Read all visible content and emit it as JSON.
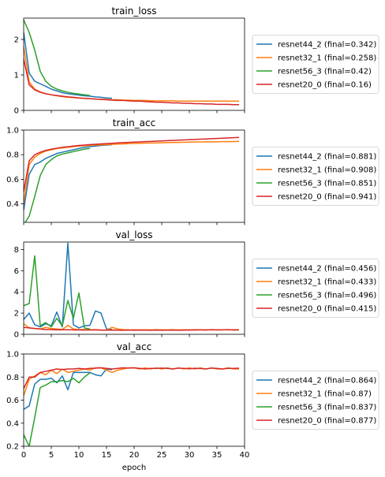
{
  "figure": {
    "xlabel": "epoch"
  },
  "chart_data": [
    {
      "type": "line",
      "title": "train_loss",
      "xlabel": "",
      "ylabel": "",
      "xlim": [
        0,
        40
      ],
      "ylim": [
        0,
        2.6
      ],
      "yticks": [
        0,
        1,
        2
      ],
      "xticks": [
        0,
        5,
        10,
        15,
        20,
        25,
        30,
        35,
        40
      ],
      "show_xtick_labels": false,
      "legend_position": "right",
      "series": [
        {
          "name": "resnet44_2 (final=0.342)",
          "color": "#1f77b4",
          "x": [
            0,
            1,
            2,
            3,
            4,
            5,
            6,
            7,
            8,
            9,
            10,
            11,
            12,
            13,
            14,
            15,
            16
          ],
          "y": [
            2.2,
            1.05,
            0.82,
            0.75,
            0.68,
            0.6,
            0.55,
            0.5,
            0.47,
            0.45,
            0.43,
            0.41,
            0.4,
            0.38,
            0.37,
            0.35,
            0.342
          ]
        },
        {
          "name": "resnet32_1 (final=0.258)",
          "color": "#ff7f0e",
          "x": [
            0,
            1,
            2,
            3,
            4,
            5,
            6,
            7,
            8,
            9,
            10,
            11,
            12,
            13,
            14,
            15,
            16,
            17,
            18,
            19,
            20,
            21,
            22,
            23,
            24,
            25,
            26,
            27,
            28,
            29,
            30,
            31,
            32,
            33,
            34,
            35,
            36,
            37,
            38,
            39
          ],
          "y": [
            1.8,
            0.8,
            0.6,
            0.52,
            0.47,
            0.44,
            0.41,
            0.39,
            0.37,
            0.36,
            0.35,
            0.34,
            0.33,
            0.32,
            0.31,
            0.31,
            0.3,
            0.3,
            0.29,
            0.29,
            0.28,
            0.28,
            0.28,
            0.27,
            0.27,
            0.27,
            0.27,
            0.27,
            0.26,
            0.26,
            0.26,
            0.26,
            0.26,
            0.26,
            0.26,
            0.26,
            0.26,
            0.26,
            0.26,
            0.258
          ]
        },
        {
          "name": "resnet56_3 (final=0.42)",
          "color": "#2ca02c",
          "x": [
            0,
            1,
            2,
            3,
            4,
            5,
            6,
            7,
            8,
            9,
            10,
            11,
            12
          ],
          "y": [
            2.55,
            2.2,
            1.7,
            1.1,
            0.82,
            0.68,
            0.6,
            0.55,
            0.51,
            0.48,
            0.46,
            0.44,
            0.42
          ]
        },
        {
          "name": "resnet20_0 (final=0.16)",
          "color": "#d62728",
          "x": [
            0,
            1,
            2,
            3,
            4,
            5,
            6,
            7,
            8,
            9,
            10,
            11,
            12,
            13,
            14,
            15,
            16,
            17,
            18,
            19,
            20,
            21,
            22,
            23,
            24,
            25,
            26,
            27,
            28,
            29,
            30,
            31,
            32,
            33,
            34,
            35,
            36,
            37,
            38,
            39
          ],
          "y": [
            1.45,
            0.72,
            0.58,
            0.51,
            0.47,
            0.44,
            0.42,
            0.4,
            0.38,
            0.37,
            0.35,
            0.34,
            0.33,
            0.32,
            0.31,
            0.3,
            0.29,
            0.28,
            0.28,
            0.27,
            0.26,
            0.26,
            0.25,
            0.24,
            0.23,
            0.23,
            0.22,
            0.21,
            0.21,
            0.2,
            0.2,
            0.19,
            0.19,
            0.18,
            0.18,
            0.17,
            0.17,
            0.17,
            0.16,
            0.16
          ]
        }
      ]
    },
    {
      "type": "line",
      "title": "train_acc",
      "xlabel": "",
      "ylabel": "",
      "xlim": [
        0,
        40
      ],
      "ylim": [
        0.25,
        1.0
      ],
      "yticks": [
        0.4,
        0.6,
        0.8,
        1.0
      ],
      "xticks": [
        0,
        5,
        10,
        15,
        20,
        25,
        30,
        35,
        40
      ],
      "show_xtick_labels": false,
      "legend_position": "right",
      "series": [
        {
          "name": "resnet44_2 (final=0.881)",
          "color": "#1f77b4",
          "x": [
            0,
            1,
            2,
            3,
            4,
            5,
            6,
            7,
            8,
            9,
            10,
            11,
            12,
            13,
            14,
            15,
            16
          ],
          "y": [
            0.35,
            0.64,
            0.72,
            0.74,
            0.77,
            0.79,
            0.81,
            0.82,
            0.83,
            0.84,
            0.85,
            0.86,
            0.865,
            0.87,
            0.875,
            0.878,
            0.881
          ]
        },
        {
          "name": "resnet32_1 (final=0.908)",
          "color": "#ff7f0e",
          "x": [
            0,
            1,
            2,
            3,
            4,
            5,
            6,
            7,
            8,
            9,
            10,
            11,
            12,
            13,
            14,
            15,
            16,
            17,
            18,
            19,
            20,
            21,
            22,
            23,
            24,
            25,
            26,
            27,
            28,
            29,
            30,
            31,
            32,
            33,
            34,
            35,
            36,
            37,
            38,
            39
          ],
          "y": [
            0.4,
            0.72,
            0.78,
            0.81,
            0.83,
            0.84,
            0.85,
            0.855,
            0.86,
            0.865,
            0.87,
            0.873,
            0.876,
            0.878,
            0.88,
            0.882,
            0.884,
            0.886,
            0.888,
            0.89,
            0.892,
            0.893,
            0.894,
            0.895,
            0.896,
            0.897,
            0.898,
            0.899,
            0.9,
            0.901,
            0.902,
            0.903,
            0.904,
            0.904,
            0.905,
            0.905,
            0.906,
            0.906,
            0.907,
            0.908
          ]
        },
        {
          "name": "resnet56_3 (final=0.851)",
          "color": "#2ca02c",
          "x": [
            0,
            1,
            2,
            3,
            4,
            5,
            6,
            7,
            8,
            9,
            10,
            11,
            12
          ],
          "y": [
            0.23,
            0.3,
            0.46,
            0.63,
            0.72,
            0.76,
            0.79,
            0.805,
            0.815,
            0.825,
            0.835,
            0.845,
            0.851
          ]
        },
        {
          "name": "resnet20_0 (final=0.941)",
          "color": "#d62728",
          "x": [
            0,
            1,
            2,
            3,
            4,
            5,
            6,
            7,
            8,
            9,
            10,
            11,
            12,
            13,
            14,
            15,
            16,
            17,
            18,
            19,
            20,
            21,
            22,
            23,
            24,
            25,
            26,
            27,
            28,
            29,
            30,
            31,
            32,
            33,
            34,
            35,
            36,
            37,
            38,
            39
          ],
          "y": [
            0.5,
            0.75,
            0.8,
            0.82,
            0.835,
            0.845,
            0.853,
            0.86,
            0.865,
            0.87,
            0.875,
            0.878,
            0.882,
            0.885,
            0.888,
            0.89,
            0.893,
            0.896,
            0.898,
            0.9,
            0.902,
            0.904,
            0.906,
            0.908,
            0.91,
            0.912,
            0.914,
            0.916,
            0.918,
            0.92,
            0.922,
            0.924,
            0.926,
            0.928,
            0.93,
            0.932,
            0.934,
            0.936,
            0.938,
            0.941
          ]
        }
      ]
    },
    {
      "type": "line",
      "title": "val_loss",
      "xlabel": "",
      "ylabel": "",
      "xlim": [
        0,
        40
      ],
      "ylim": [
        0,
        8.7
      ],
      "yticks": [
        0,
        2,
        4,
        6,
        8
      ],
      "xticks": [
        0,
        5,
        10,
        15,
        20,
        25,
        30,
        35,
        40
      ],
      "show_xtick_labels": false,
      "legend_position": "right",
      "series": [
        {
          "name": "resnet44_2 (final=0.456)",
          "color": "#1f77b4",
          "x": [
            0,
            1,
            2,
            3,
            4,
            5,
            6,
            7,
            8,
            9,
            10,
            11,
            12,
            13,
            14,
            15,
            16
          ],
          "y": [
            1.4,
            2.0,
            0.9,
            0.7,
            1.0,
            0.8,
            2.1,
            0.7,
            8.6,
            0.9,
            0.6,
            0.8,
            0.85,
            2.2,
            2.0,
            0.5,
            0.456
          ]
        },
        {
          "name": "resnet32_1 (final=0.433)",
          "color": "#ff7f0e",
          "x": [
            0,
            1,
            2,
            3,
            4,
            5,
            6,
            7,
            8,
            9,
            10,
            11,
            12,
            13,
            14,
            15,
            16,
            17,
            18,
            19,
            20,
            21,
            22,
            23,
            24,
            25,
            26,
            27,
            28,
            29,
            30,
            31,
            32,
            33,
            34,
            35,
            36,
            37,
            38,
            39
          ],
          "y": [
            1.0,
            0.6,
            0.55,
            0.5,
            0.65,
            0.55,
            0.5,
            0.45,
            0.85,
            0.5,
            0.45,
            0.45,
            0.42,
            0.45,
            0.4,
            0.4,
            0.65,
            0.5,
            0.45,
            0.42,
            0.43,
            0.42,
            0.43,
            0.42,
            0.44,
            0.43,
            0.42,
            0.44,
            0.42,
            0.43,
            0.42,
            0.44,
            0.43,
            0.42,
            0.44,
            0.43,
            0.43,
            0.42,
            0.44,
            0.433
          ]
        },
        {
          "name": "resnet56_3 (final=0.496)",
          "color": "#2ca02c",
          "x": [
            0,
            1,
            2,
            3,
            4,
            5,
            6,
            7,
            8,
            9,
            10,
            11,
            12
          ],
          "y": [
            2.7,
            2.9,
            7.4,
            0.8,
            1.1,
            0.7,
            1.5,
            0.8,
            3.2,
            1.5,
            3.9,
            0.6,
            0.496
          ]
        },
        {
          "name": "resnet20_0 (final=0.415)",
          "color": "#d62728",
          "x": [
            0,
            1,
            2,
            3,
            4,
            5,
            6,
            7,
            8,
            9,
            10,
            11,
            12,
            13,
            14,
            15,
            16,
            17,
            18,
            19,
            20,
            21,
            22,
            23,
            24,
            25,
            26,
            27,
            28,
            29,
            30,
            31,
            32,
            33,
            34,
            35,
            36,
            37,
            38,
            39
          ],
          "y": [
            0.65,
            0.6,
            0.55,
            0.5,
            0.45,
            0.45,
            0.42,
            0.44,
            0.43,
            0.42,
            0.41,
            0.4,
            0.42,
            0.41,
            0.4,
            0.39,
            0.4,
            0.39,
            0.38,
            0.4,
            0.38,
            0.4,
            0.39,
            0.38,
            0.4,
            0.38,
            0.39,
            0.4,
            0.38,
            0.39,
            0.41,
            0.4,
            0.42,
            0.4,
            0.43,
            0.41,
            0.42,
            0.44,
            0.4,
            0.415
          ]
        }
      ]
    },
    {
      "type": "line",
      "title": "val_acc",
      "xlabel": "epoch",
      "ylabel": "",
      "xlim": [
        0,
        40
      ],
      "ylim": [
        0.2,
        1.0
      ],
      "yticks": [
        0.2,
        0.4,
        0.6,
        0.8,
        1.0
      ],
      "xticks": [
        0,
        5,
        10,
        15,
        20,
        25,
        30,
        35,
        40
      ],
      "show_xtick_labels": true,
      "legend_position": "right",
      "series": [
        {
          "name": "resnet44_2 (final=0.864)",
          "color": "#1f77b4",
          "x": [
            0,
            1,
            2,
            3,
            4,
            5,
            6,
            7,
            8,
            9,
            10,
            11,
            12,
            13,
            14,
            15,
            16
          ],
          "y": [
            0.52,
            0.55,
            0.74,
            0.78,
            0.78,
            0.79,
            0.75,
            0.81,
            0.69,
            0.84,
            0.84,
            0.84,
            0.84,
            0.82,
            0.81,
            0.87,
            0.864
          ]
        },
        {
          "name": "resnet32_1 (final=0.87)",
          "color": "#ff7f0e",
          "x": [
            0,
            1,
            2,
            3,
            4,
            5,
            6,
            7,
            8,
            9,
            10,
            11,
            12,
            13,
            14,
            15,
            16,
            17,
            18,
            19,
            20,
            21,
            22,
            23,
            24,
            25,
            26,
            27,
            28,
            29,
            30,
            31,
            32,
            33,
            34,
            35,
            36,
            37,
            38,
            39
          ],
          "y": [
            0.64,
            0.78,
            0.81,
            0.84,
            0.82,
            0.86,
            0.83,
            0.87,
            0.84,
            0.85,
            0.86,
            0.87,
            0.86,
            0.88,
            0.88,
            0.86,
            0.84,
            0.86,
            0.87,
            0.88,
            0.88,
            0.87,
            0.88,
            0.87,
            0.88,
            0.87,
            0.88,
            0.87,
            0.88,
            0.87,
            0.88,
            0.87,
            0.88,
            0.87,
            0.88,
            0.87,
            0.87,
            0.88,
            0.87,
            0.87
          ]
        },
        {
          "name": "resnet56_3 (final=0.837)",
          "color": "#2ca02c",
          "x": [
            0,
            1,
            2,
            3,
            4,
            5,
            6,
            7,
            8,
            9,
            10,
            11,
            12
          ],
          "y": [
            0.3,
            0.2,
            0.45,
            0.71,
            0.73,
            0.76,
            0.76,
            0.77,
            0.76,
            0.79,
            0.75,
            0.8,
            0.837
          ]
        },
        {
          "name": "resnet20_0 (final=0.877)",
          "color": "#d62728",
          "x": [
            0,
            1,
            2,
            3,
            4,
            5,
            6,
            7,
            8,
            9,
            10,
            11,
            12,
            13,
            14,
            15,
            16,
            17,
            18,
            19,
            20,
            21,
            22,
            23,
            24,
            25,
            26,
            27,
            28,
            29,
            30,
            31,
            32,
            33,
            34,
            35,
            36,
            37,
            38,
            39
          ],
          "y": [
            0.7,
            0.8,
            0.8,
            0.84,
            0.85,
            0.86,
            0.87,
            0.865,
            0.87,
            0.87,
            0.875,
            0.87,
            0.875,
            0.877,
            0.88,
            0.875,
            0.87,
            0.875,
            0.88,
            0.878,
            0.88,
            0.875,
            0.87,
            0.875,
            0.875,
            0.878,
            0.875,
            0.87,
            0.878,
            0.875,
            0.872,
            0.876,
            0.874,
            0.87,
            0.878,
            0.875,
            0.87,
            0.876,
            0.875,
            0.877
          ]
        }
      ]
    }
  ]
}
